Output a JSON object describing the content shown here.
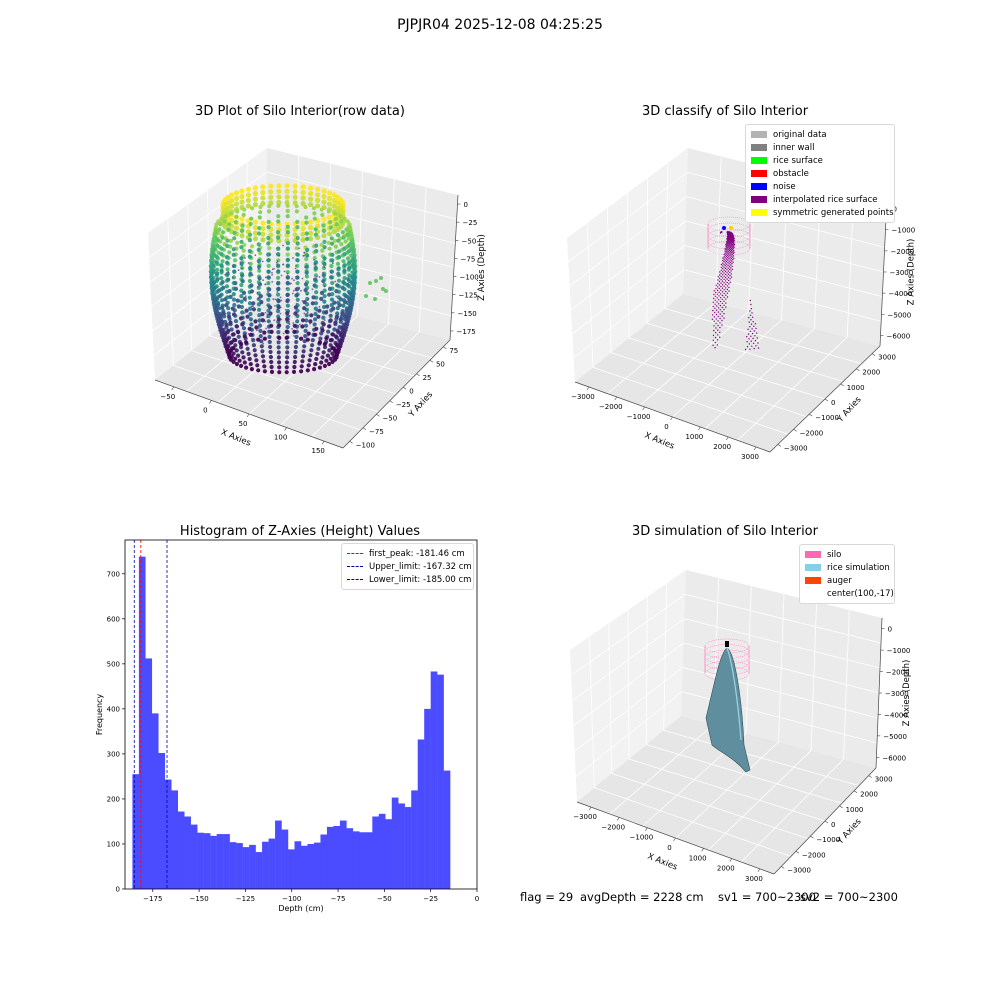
{
  "suptitle": "PJPJR04 2025-12-08 04:25:25",
  "panels": {
    "raw": {
      "title": "3D Plot of Silo Interior(row data)",
      "xlabel": "X Axies",
      "ylabel": "Y Axies",
      "zlabel": "Z Axies (Depth)",
      "xticks": [
        "−50",
        "0",
        "50",
        "100",
        "150"
      ],
      "yticks": [
        "−100",
        "−75",
        "−50",
        "−25",
        "0",
        "25",
        "50",
        "75"
      ],
      "zticks": [
        "0",
        "−25",
        "−50",
        "−75",
        "−100",
        "−125",
        "−150",
        "−175"
      ]
    },
    "classify": {
      "title": "3D classify of Silo Interior",
      "xlabel": "X Axies",
      "ylabel": "Y Axies",
      "zlabel": "Z Axies (Depth)",
      "xticks": [
        "−3000",
        "−2000",
        "−1000",
        "0",
        "1000",
        "2000",
        "3000"
      ],
      "yticks": [
        "−3000",
        "−2000",
        "−1000",
        "0",
        "1000",
        "2000",
        "3000"
      ],
      "zticks": [
        "0",
        "−1000",
        "−2000",
        "−3000",
        "−4000",
        "−5000",
        "−6000"
      ],
      "legend": [
        {
          "label": "original data",
          "color": "#b3b3b3"
        },
        {
          "label": "inner wall",
          "color": "#808080"
        },
        {
          "label": "rice surface",
          "color": "#00ff00"
        },
        {
          "label": "obstacle",
          "color": "#ff0000"
        },
        {
          "label": "noise",
          "color": "#0000ff"
        },
        {
          "label": "interpolated rice surface",
          "color": "#800080"
        },
        {
          "label": "symmetric generated points",
          "color": "#ffff00"
        }
      ]
    },
    "hist": {
      "title": "Histogram of Z-Axies (Height) Values",
      "xlabel": "Depth (cm)",
      "ylabel": "Frequency",
      "legend": [
        {
          "label": "first_peak: -181.46 cm",
          "color": "#ff0000"
        },
        {
          "label": "Upper_limit: -167.32 cm",
          "color": "#0000aa"
        },
        {
          "label": "Lower_limit: -185.00 cm",
          "color": "#0000aa"
        }
      ]
    },
    "sim": {
      "title": "3D simulation of Silo Interior",
      "xlabel": "X Axies",
      "ylabel": "Y Axies",
      "zlabel": "Z Axies (Depth)",
      "xticks": [
        "−3000",
        "−2000",
        "−1000",
        "0",
        "1000",
        "2000",
        "3000"
      ],
      "yticks": [
        "−3000",
        "−2000",
        "−1000",
        "0",
        "1000",
        "2000",
        "3000"
      ],
      "zticks": [
        "0",
        "−1000",
        "−2000",
        "−3000",
        "−4000",
        "−5000",
        "−6000"
      ],
      "legend": [
        {
          "label": "silo",
          "color": "#ff69b4"
        },
        {
          "label": "rice simulation",
          "color": "#87ceeb"
        },
        {
          "label": "auger",
          "color": "#ff4500"
        },
        {
          "label": "center(100,-17)",
          "color": ""
        }
      ]
    }
  },
  "footer": {
    "flag": "flag = 29",
    "avg": "avgDepth = 2228 cm",
    "sv1": "sv1 = 700~2300",
    "sv2": "sv2 = 700~2300"
  },
  "chart_data": [
    {
      "type": "scatter",
      "title": "3D Plot of Silo Interior(row data)",
      "xlabel": "X Axies",
      "ylabel": "Y Axies",
      "zlabel": "Z Axies (Depth)",
      "xlim": [
        -90,
        150
      ],
      "ylim": [
        -100,
        90
      ],
      "zlim": [
        -190,
        5
      ],
      "grid": true
    },
    {
      "type": "scatter",
      "title": "3D classify of Silo Interior",
      "xlabel": "X Axies",
      "ylabel": "Y Axies",
      "zlabel": "Z Axies (Depth)",
      "xlim": [
        -3500,
        3500
      ],
      "ylim": [
        -3500,
        3500
      ],
      "zlim": [
        -6500,
        500
      ],
      "legend_position": "top-right",
      "grid": true
    },
    {
      "type": "bar",
      "title": "Histogram of Z-Axies (Height) Values",
      "xlabel": "Depth (cm)",
      "ylabel": "Frequency",
      "xlim": [
        -190,
        0
      ],
      "ylim": [
        0,
        775
      ],
      "xticks": [
        -175,
        -150,
        -125,
        -100,
        -75,
        -50,
        -25,
        0
      ],
      "yticks": [
        0,
        100,
        200,
        300,
        400,
        500,
        600,
        700
      ],
      "bin_start": -186,
      "bin_width": 3.5,
      "values": [
        255,
        738,
        512,
        390,
        302,
        243,
        219,
        172,
        161,
        143,
        125,
        124,
        118,
        122,
        122,
        104,
        102,
        93,
        98,
        82,
        105,
        112,
        152,
        132,
        88,
        106,
        96,
        100,
        103,
        121,
        138,
        140,
        152,
        135,
        128,
        126,
        126,
        161,
        167,
        155,
        203,
        190,
        182,
        219,
        332,
        400,
        483,
        476,
        263
      ],
      "vlines": [
        {
          "name": "first_peak",
          "x": -181.46,
          "color": "#ff0000"
        },
        {
          "name": "Upper_limit",
          "x": -167.32,
          "color": "#0000aa"
        },
        {
          "name": "Lower_limit",
          "x": -185.0,
          "color": "#0000aa"
        }
      ],
      "bar_color": "#4b4bff",
      "legend_position": "top-right"
    },
    {
      "type": "area",
      "title": "3D simulation of Silo Interior",
      "xlabel": "X Axies",
      "ylabel": "Y Axies",
      "zlabel": "Z Axies (Depth)",
      "xlim": [
        -3500,
        3500
      ],
      "ylim": [
        -3500,
        3500
      ],
      "zlim": [
        -6500,
        500
      ],
      "legend_position": "top-right",
      "grid": true
    }
  ]
}
